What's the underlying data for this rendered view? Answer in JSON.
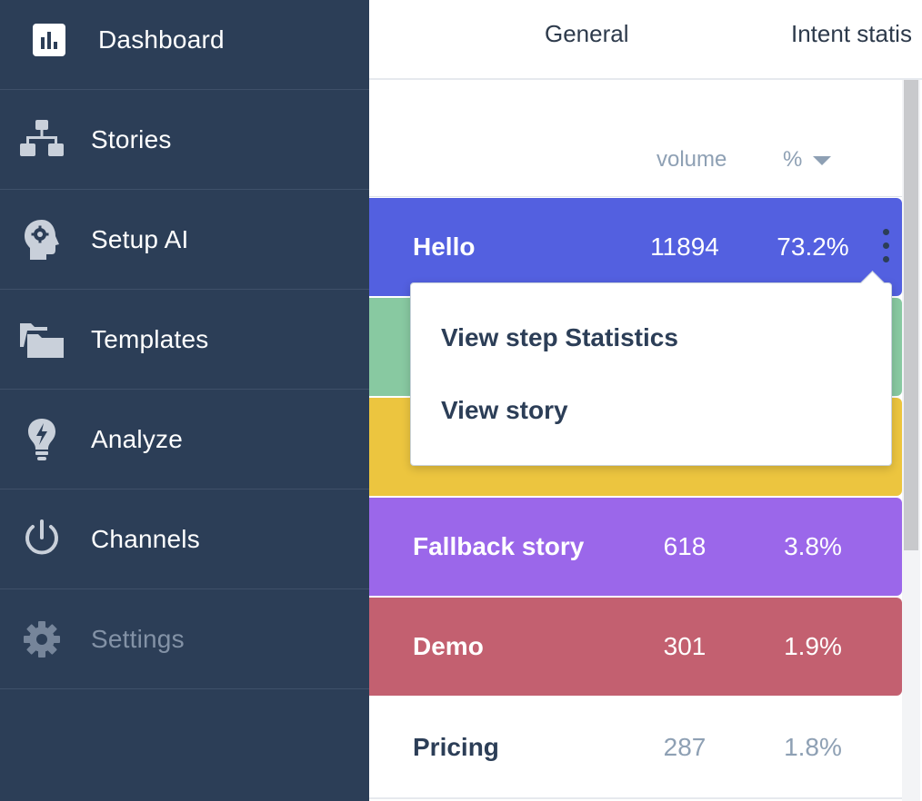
{
  "sidebar": {
    "items": [
      {
        "label": "Dashboard",
        "icon": "bar-chart-icon"
      },
      {
        "label": "Stories",
        "icon": "sitemap-icon"
      },
      {
        "label": "Setup AI",
        "icon": "ai-head-icon"
      },
      {
        "label": "Templates",
        "icon": "folders-icon"
      },
      {
        "label": "Analyze",
        "icon": "lightbulb-icon"
      },
      {
        "label": "Channels",
        "icon": "power-icon"
      },
      {
        "label": "Settings",
        "icon": "gear-icon"
      }
    ]
  },
  "tabs": {
    "general": "General",
    "intent": "Intent statis"
  },
  "table": {
    "headers": {
      "volume": "volume",
      "percent": "%"
    },
    "rows": [
      {
        "name": "Hello",
        "volume": "11894",
        "percent": "73.2%",
        "color": "#5360e0"
      },
      {
        "name": "",
        "volume": "",
        "percent": "",
        "color": "#88c9a1"
      },
      {
        "name": "",
        "volume": "",
        "percent": "",
        "color": "#ecc53f"
      },
      {
        "name": "Fallback story",
        "volume": "618",
        "percent": "3.8%",
        "color": "#9b67ea"
      },
      {
        "name": "Demo",
        "volume": "301",
        "percent": "1.9%",
        "color": "#c36070"
      },
      {
        "name": "Pricing",
        "volume": "287",
        "percent": "1.8%",
        "color": "#ffffff"
      }
    ]
  },
  "dropdown": {
    "items": [
      "View step Statistics",
      "View story"
    ]
  },
  "colors": {
    "sidebar_bg": "#2c3e57",
    "text_dark": "#2c3e57",
    "muted": "#8ea0b4"
  }
}
